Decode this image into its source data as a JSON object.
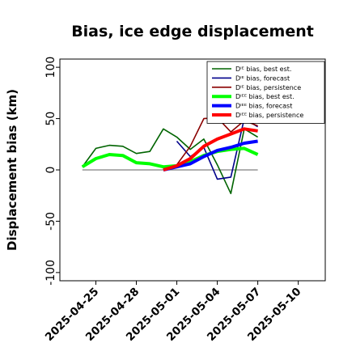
{
  "chart_data": {
    "type": "line",
    "title": "Bias, ice edge displacement",
    "ylabel": "Displacement bias (km)",
    "xlabel": "",
    "ylim": [
      -108,
      108
    ],
    "yticks": [
      -100,
      -50,
      0,
      50,
      100
    ],
    "xlim": [
      "2025-04-22T08:00",
      "2025-05-12"
    ],
    "xticks": [
      {
        "date": "2025-04-25",
        "label": "2025-04-25",
        "color": "#000000"
      },
      {
        "date": "2025-04-28",
        "label": "2025-04-28",
        "color": "#000000"
      },
      {
        "date": "2025-05-01",
        "label": "2025-05-01",
        "color": "#228B22"
      },
      {
        "date": "2025-05-04",
        "label": "2025-05-04",
        "color": "#000000"
      },
      {
        "date": "2025-05-07",
        "label": "2025-05-07",
        "color": "#000000"
      },
      {
        "date": "2025-05-10",
        "label": "2025-05-10",
        "color": "#000000"
      }
    ],
    "reference_line": 0,
    "legend_position": "upper-right",
    "series": [
      {
        "name": "Dᴵᴱ bias, best est.",
        "color": "#006400",
        "width": 1.6,
        "x": [
          "2025-04-24",
          "2025-04-25",
          "2025-04-26",
          "2025-04-27",
          "2025-04-28",
          "2025-04-29",
          "2025-04-30",
          "2025-05-01",
          "2025-05-02",
          "2025-05-03",
          "2025-05-04",
          "2025-05-05",
          "2025-05-06",
          "2025-05-07"
        ],
        "y": [
          3,
          21,
          24,
          23,
          16,
          18,
          40,
          32,
          20,
          30,
          5,
          -23,
          40,
          32
        ]
      },
      {
        "name": "Dᴵᴱ bias, forecast",
        "color": "#00008B",
        "width": 1.6,
        "x": [
          "2025-05-01",
          "2025-05-02",
          "2025-05-03",
          "2025-05-04",
          "2025-05-05",
          "2025-05-06",
          "2025-05-07"
        ],
        "y": [
          28,
          13,
          22,
          -9,
          -7,
          50,
          42
        ]
      },
      {
        "name": "Dᴵᴱ bias, persistence",
        "color": "#8B0000",
        "width": 1.6,
        "x": [
          "2025-04-30",
          "2025-05-01",
          "2025-05-02",
          "2025-05-03",
          "2025-05-04",
          "2025-05-05",
          "2025-05-06",
          "2025-05-07"
        ],
        "y": [
          0,
          5,
          23,
          50,
          51,
          37,
          48,
          43
        ]
      },
      {
        "name": "Dᴵᴱᴱ bias, best est.",
        "color": "#00FF00",
        "width": 4,
        "x": [
          "2025-04-24",
          "2025-04-25",
          "2025-04-26",
          "2025-04-27",
          "2025-04-28",
          "2025-04-29",
          "2025-04-30",
          "2025-05-01",
          "2025-05-02",
          "2025-05-03",
          "2025-05-04",
          "2025-05-05",
          "2025-05-06",
          "2025-05-07"
        ],
        "y": [
          3,
          11,
          15,
          14,
          7,
          6,
          3,
          4,
          8,
          14,
          18,
          20,
          21,
          15
        ]
      },
      {
        "name": "Dᴵᴱᴱ bias, forecast",
        "color": "#0000FF",
        "width": 4,
        "x": [
          "2025-04-30",
          "2025-05-01",
          "2025-05-02",
          "2025-05-03",
          "2025-05-04",
          "2025-05-05",
          "2025-05-06",
          "2025-05-07"
        ],
        "y": [
          0,
          3,
          6,
          13,
          19,
          22,
          26,
          28
        ]
      },
      {
        "name": "Dᴵᴱᴱ bias, persistence",
        "color": "#FF0000",
        "width": 4,
        "x": [
          "2025-04-30",
          "2025-05-01",
          "2025-05-02",
          "2025-05-03",
          "2025-05-04",
          "2025-05-05",
          "2025-05-06",
          "2025-05-07"
        ],
        "y": [
          0,
          4,
          11,
          23,
          30,
          35,
          40,
          38
        ]
      }
    ]
  }
}
